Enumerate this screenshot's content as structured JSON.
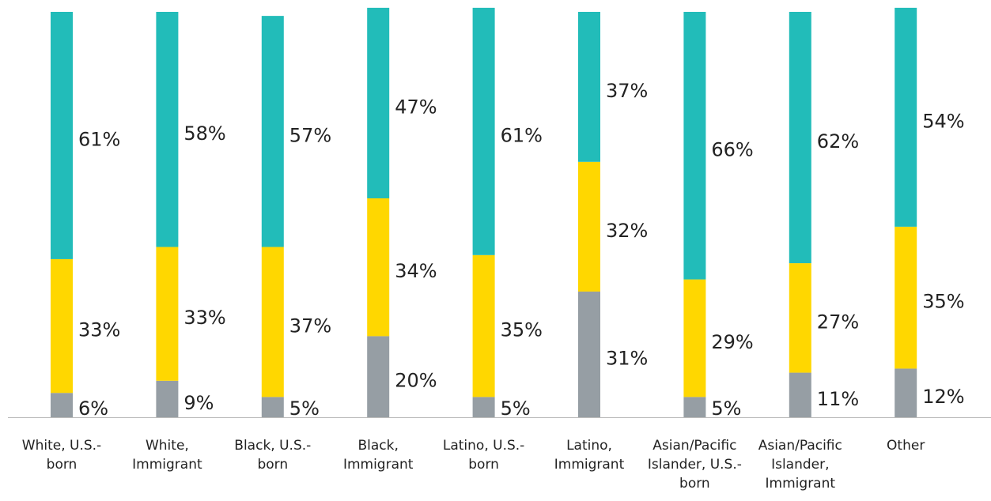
{
  "chart_data": {
    "type": "stacked-bar",
    "categories": [
      "White, U.S.-born",
      "White, Immigrant",
      "Black, U.S.-born",
      "Black, Immigrant",
      "Latino, U.S.-born",
      "Latino, Immigrant",
      "Asian/Pacific Islander, U.S.-born",
      "Asian/Pacific Islander, Immigrant",
      "Other"
    ],
    "series": [
      {
        "color": "#969ea4",
        "values": [
          6,
          9,
          5,
          20,
          5,
          31,
          5,
          11,
          12
        ],
        "value_labels": [
          "6%",
          "9%",
          "5%",
          "20%",
          "5%",
          "31%",
          "5%",
          "11%",
          "12%"
        ]
      },
      {
        "color": "#ffd700",
        "values": [
          33,
          33,
          37,
          34,
          35,
          32,
          29,
          27,
          35
        ],
        "value_labels": [
          "33%",
          "33%",
          "37%",
          "34%",
          "35%",
          "32%",
          "29%",
          "27%",
          "35%"
        ]
      },
      {
        "color": "#22bcb9",
        "values": [
          61,
          58,
          57,
          47,
          61,
          37,
          66,
          62,
          54
        ],
        "value_labels": [
          "61%",
          "58%",
          "57%",
          "47%",
          "61%",
          "37%",
          "66%",
          "62%",
          "54%"
        ]
      }
    ]
  }
}
